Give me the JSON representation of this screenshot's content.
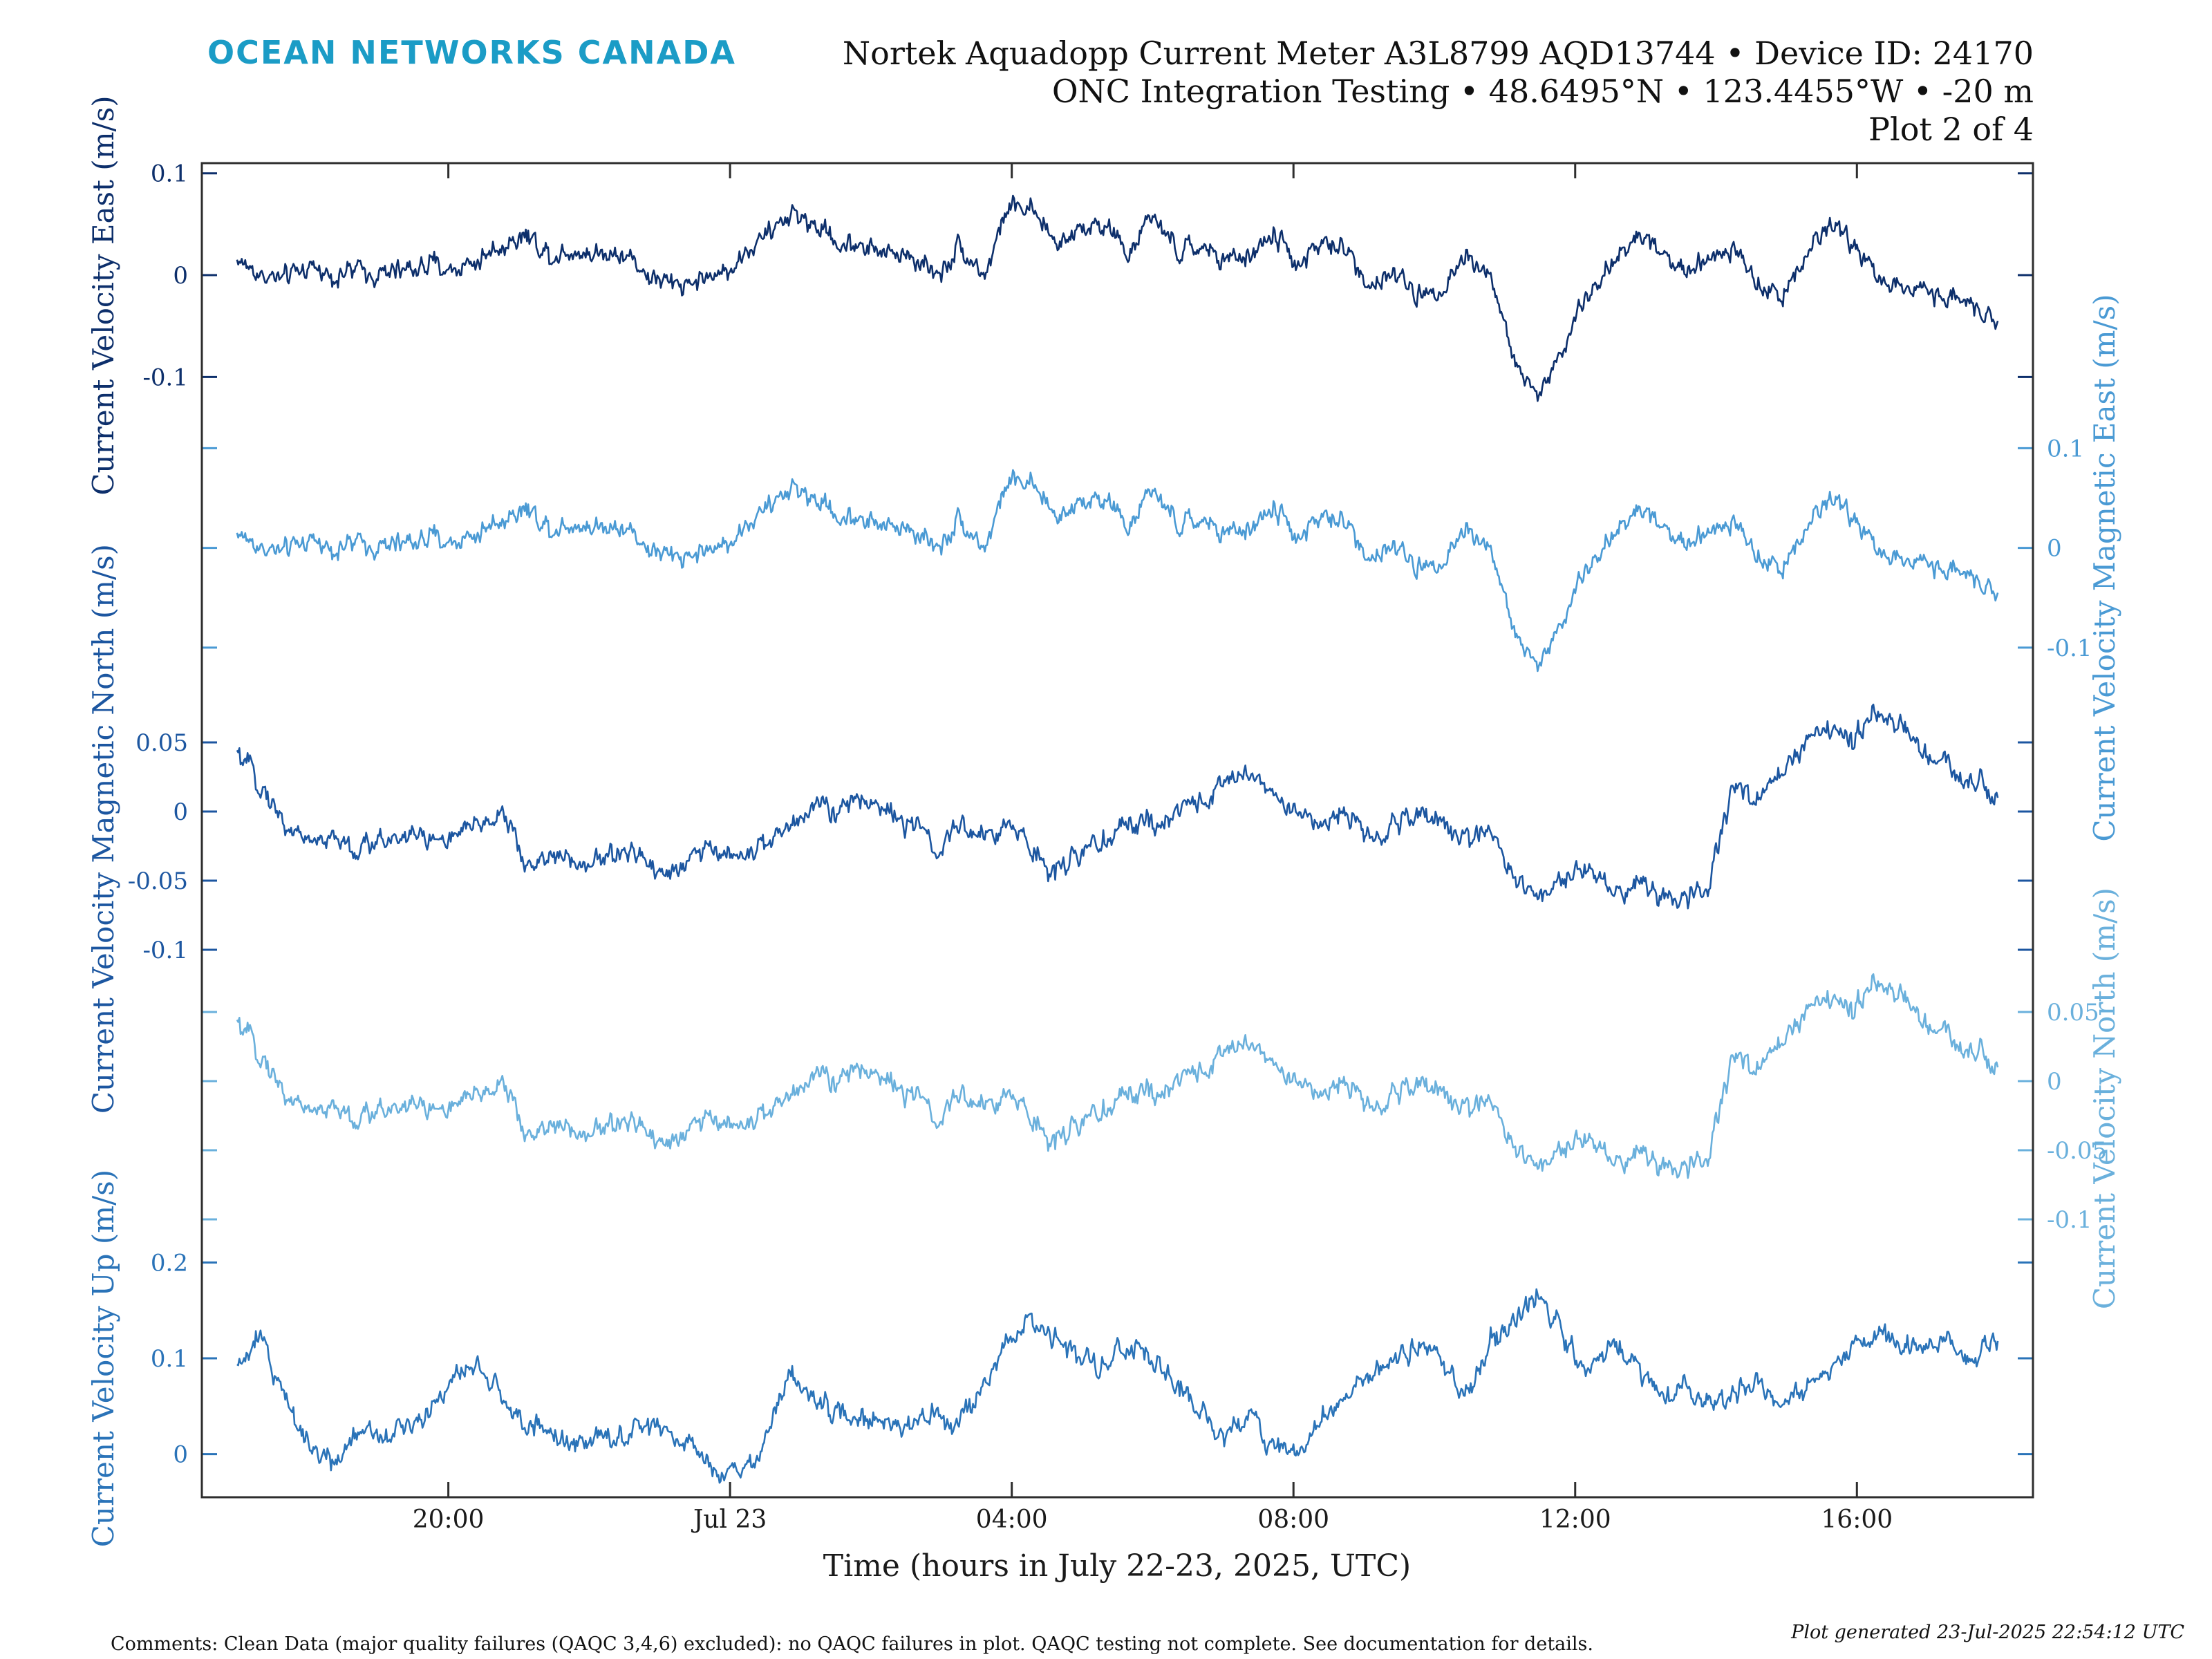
{
  "header": {
    "brand": "OCEAN NETWORKS CANADA",
    "title_line1": "Nortek Aquadopp Current Meter A3L8799 AQD13744 • Device ID: 24170",
    "title_line2": "ONC Integration Testing • 48.6495°N • 123.4455°W • -20 m",
    "title_line3": "Plot 2 of 4"
  },
  "footer": {
    "comments": "Comments: Clean Data (major quality failures (QAQC 3,4,6) excluded): no QAQC failures in plot. QAQC testing not complete. See documentation for details.",
    "generated": "Plot generated 23-Jul-2025 22:54:12 UTC"
  },
  "chart_data": {
    "type": "line",
    "xlabel": "Time (hours in July 22-23, 2025, UTC)",
    "xlim": [
      "2025-07-22T16:30",
      "2025-07-23T18:30"
    ],
    "x_ticks": [
      {
        "t": "2025-07-22T20:00",
        "label": "20:00"
      },
      {
        "t": "2025-07-23T00:00",
        "label": "Jul 23"
      },
      {
        "t": "2025-07-23T04:00",
        "label": "04:00"
      },
      {
        "t": "2025-07-23T08:00",
        "label": "08:00"
      },
      {
        "t": "2025-07-23T12:00",
        "label": "12:00"
      },
      {
        "t": "2025-07-23T16:00",
        "label": "16:00"
      }
    ],
    "data_range": [
      "2025-07-22T17:00",
      "2025-07-23T18:00"
    ],
    "series": [
      {
        "name": "Current Velocity East",
        "ylabel": "Current Velocity East (m/s)",
        "axis_side": "left",
        "color": "#0d2f6b",
        "ylim": [
          -0.15,
          0.11
        ],
        "yticks": [
          {
            "v": 0.1,
            "label": "0.1"
          },
          {
            "v": 0,
            "label": "0"
          },
          {
            "v": -0.1,
            "label": "-0.1"
          }
        ],
        "values": [
          0.015,
          0.0,
          -0.005,
          0.01,
          0.0,
          0.005,
          0.0,
          0.005,
          0.01,
          0.005,
          0.015,
          0.03,
          0.04,
          0.02,
          0.025,
          0.02,
          0.025,
          0.0,
          -0.01,
          -0.005,
          0.0,
          0.02,
          0.04,
          0.06,
          0.05,
          0.03,
          0.03,
          0.02,
          0.02,
          0.0,
          0.03,
          0.0,
          0.07,
          0.06,
          0.03,
          0.05,
          0.05,
          0.02,
          0.06,
          0.02,
          0.03,
          0.01,
          0.02,
          0.04,
          0.01,
          0.03,
          0.025,
          -0.01,
          0.0,
          -0.02,
          -0.01,
          0.02,
          0.0,
          -0.09,
          -0.12,
          -0.07,
          -0.02,
          0.01,
          0.04,
          0.03,
          0.0,
          0.02,
          0.03,
          -0.01,
          -0.02,
          0.02,
          0.05,
          0.03,
          0.0,
          -0.02,
          -0.01,
          -0.02,
          -0.03,
          -0.04
        ]
      },
      {
        "name": "Current Velocity Magnetic East",
        "ylabel": "Current Velocity Magnetic East (m/s)",
        "axis_side": "right",
        "color": "#4a9ad4",
        "ylim": [
          -0.15,
          0.11
        ],
        "yticks": [
          {
            "v": 0.1,
            "label": "0.1"
          },
          {
            "v": 0,
            "label": "0"
          },
          {
            "v": -0.1,
            "label": "-0.1"
          }
        ],
        "values": [
          0.015,
          0.0,
          -0.005,
          0.01,
          0.0,
          0.005,
          0.0,
          0.005,
          0.01,
          0.005,
          0.015,
          0.03,
          0.04,
          0.02,
          0.025,
          0.02,
          0.025,
          0.0,
          -0.01,
          -0.005,
          0.0,
          0.02,
          0.04,
          0.06,
          0.05,
          0.03,
          0.03,
          0.02,
          0.02,
          0.0,
          0.03,
          0.0,
          0.07,
          0.06,
          0.03,
          0.05,
          0.05,
          0.02,
          0.06,
          0.02,
          0.03,
          0.01,
          0.02,
          0.04,
          0.01,
          0.03,
          0.025,
          -0.01,
          0.0,
          -0.02,
          -0.01,
          0.02,
          0.0,
          -0.09,
          -0.12,
          -0.07,
          -0.02,
          0.01,
          0.04,
          0.03,
          0.0,
          0.02,
          0.03,
          -0.01,
          -0.02,
          0.02,
          0.05,
          0.03,
          0.0,
          -0.02,
          -0.01,
          -0.02,
          -0.03,
          -0.04
        ]
      },
      {
        "name": "Current Velocity Magnetic North",
        "ylabel": "Current Velocity Magnetic North (m/s)",
        "axis_side": "left",
        "color": "#1c56a0",
        "ylim": [
          -0.11,
          0.085
        ],
        "yticks": [
          {
            "v": 0.05,
            "label": "0.05"
          },
          {
            "v": 0,
            "label": "0"
          },
          {
            "v": -0.05,
            "label": "-0.05"
          },
          {
            "v": -0.1,
            "label": "-0.1"
          }
        ],
        "values": [
          0.04,
          0.02,
          -0.01,
          -0.02,
          -0.02,
          -0.03,
          -0.02,
          -0.015,
          -0.02,
          -0.02,
          -0.01,
          0.0,
          -0.04,
          -0.03,
          -0.04,
          -0.035,
          -0.03,
          -0.035,
          -0.045,
          -0.03,
          -0.03,
          -0.03,
          -0.025,
          -0.01,
          0.01,
          0.0,
          0.01,
          0.0,
          -0.01,
          -0.03,
          -0.01,
          -0.02,
          -0.01,
          -0.03,
          -0.04,
          -0.03,
          -0.02,
          -0.01,
          -0.01,
          0.0,
          0.01,
          0.02,
          0.03,
          0.01,
          0.0,
          -0.01,
          0.0,
          -0.02,
          -0.01,
          0.0,
          -0.01,
          -0.02,
          -0.01,
          -0.05,
          -0.06,
          -0.05,
          -0.04,
          -0.06,
          -0.05,
          -0.06,
          -0.07,
          -0.05,
          0.02,
          0.01,
          0.03,
          0.05,
          0.06,
          0.05,
          0.07,
          0.06,
          0.04,
          0.03,
          0.02,
          0.01
        ]
      },
      {
        "name": "Current Velocity North",
        "ylabel": "Current Velocity North (m/s)",
        "axis_side": "right",
        "color": "#6ab0dc",
        "ylim": [
          -0.11,
          0.085
        ],
        "yticks": [
          {
            "v": 0.05,
            "label": "0.05"
          },
          {
            "v": 0,
            "label": "0"
          },
          {
            "v": -0.05,
            "label": "-0.05"
          },
          {
            "v": -0.1,
            "label": "-0.1"
          }
        ],
        "values": [
          0.04,
          0.02,
          -0.01,
          -0.02,
          -0.02,
          -0.03,
          -0.02,
          -0.015,
          -0.02,
          -0.02,
          -0.01,
          0.0,
          -0.04,
          -0.03,
          -0.04,
          -0.035,
          -0.03,
          -0.035,
          -0.045,
          -0.03,
          -0.03,
          -0.03,
          -0.025,
          -0.01,
          0.01,
          0.0,
          0.01,
          0.0,
          -0.01,
          -0.03,
          -0.01,
          -0.02,
          -0.01,
          -0.03,
          -0.04,
          -0.03,
          -0.02,
          -0.01,
          -0.01,
          0.0,
          0.01,
          0.02,
          0.03,
          0.01,
          0.0,
          -0.01,
          0.0,
          -0.02,
          -0.01,
          0.0,
          -0.01,
          -0.02,
          -0.01,
          -0.05,
          -0.06,
          -0.05,
          -0.04,
          -0.06,
          -0.05,
          -0.06,
          -0.07,
          -0.05,
          0.02,
          0.01,
          0.03,
          0.05,
          0.06,
          0.05,
          0.07,
          0.06,
          0.04,
          0.03,
          0.02,
          0.01
        ]
      },
      {
        "name": "Current Velocity Up",
        "ylabel": "Current Velocity Up (m/s)",
        "axis_side": "left",
        "color": "#2a73b8",
        "ylim": [
          -0.045,
          0.245
        ],
        "yticks": [
          {
            "v": 0.2,
            "label": "0.2"
          },
          {
            "v": 0.1,
            "label": "0.1"
          },
          {
            "v": 0,
            "label": "0"
          }
        ],
        "values": [
          0.09,
          0.12,
          0.06,
          0.01,
          -0.01,
          0.03,
          0.02,
          0.03,
          0.05,
          0.08,
          0.09,
          0.06,
          0.03,
          0.02,
          0.01,
          0.02,
          0.02,
          0.03,
          0.02,
          0.0,
          -0.02,
          -0.02,
          0.02,
          0.09,
          0.05,
          0.04,
          0.04,
          0.03,
          0.03,
          0.04,
          0.03,
          0.07,
          0.12,
          0.14,
          0.12,
          0.1,
          0.09,
          0.11,
          0.1,
          0.07,
          0.04,
          0.02,
          0.04,
          0.01,
          0.0,
          0.04,
          0.06,
          0.08,
          0.1,
          0.12,
          0.09,
          0.06,
          0.12,
          0.14,
          0.17,
          0.12,
          0.08,
          0.12,
          0.09,
          0.06,
          0.07,
          0.05,
          0.06,
          0.08,
          0.05,
          0.07,
          0.09,
          0.11,
          0.13,
          0.12,
          0.11,
          0.12,
          0.1,
          0.12
        ]
      }
    ]
  }
}
